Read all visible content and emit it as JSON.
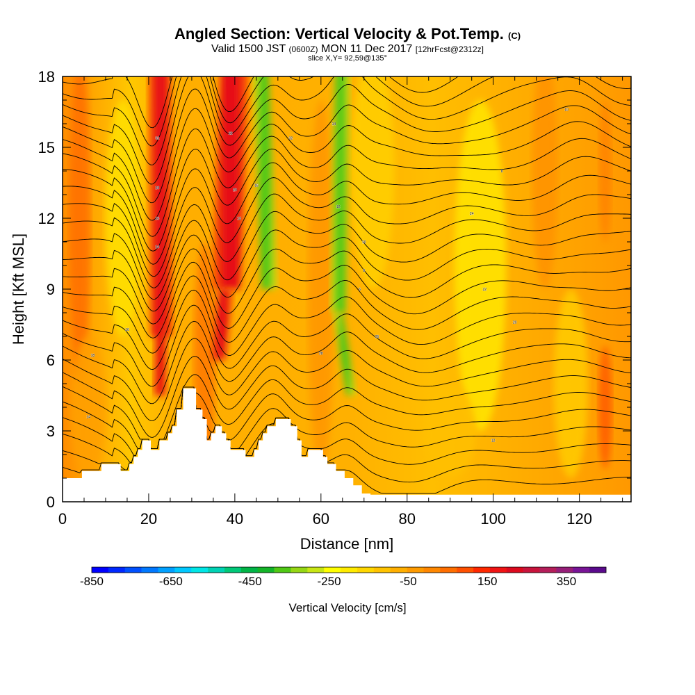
{
  "chart_data": {
    "type": "heatmap",
    "title": "Angled Section: Vertical Velocity & Pot.Temp.",
    "title_mark": "(C)",
    "subtitle_main_a": "Valid 1500 JST",
    "subtitle_utc": "(0600Z)",
    "subtitle_main_b": "MON 11 Dec 2017",
    "subtitle_fcst": "[12hrFcst@2312z]",
    "slice_label": "slice X,Y= 92,59@135°",
    "xlabel": "Distance [nm]",
    "ylabel": "Height [Kft MSL]",
    "xlim": [
      0,
      132
    ],
    "ylim": [
      0,
      18
    ],
    "x_ticks": [
      "0",
      "20",
      "40",
      "60",
      "80",
      "100",
      "120"
    ],
    "y_ticks": [
      "0",
      "3",
      "6",
      "9",
      "12",
      "15",
      "18"
    ],
    "colorbar": {
      "label": "Vertical Velocity [cm/s]",
      "ticks": [
        "-850",
        "-650",
        "-450",
        "-250",
        "-50",
        "150",
        "350"
      ],
      "range": [
        -850,
        450
      ],
      "colors": [
        "#0000ff",
        "#0028ff",
        "#0050ff",
        "#0078ff",
        "#00a0ff",
        "#00c8ff",
        "#00e6e6",
        "#00d2b4",
        "#00c878",
        "#00b446",
        "#14b428",
        "#50c814",
        "#96d714",
        "#c8e614",
        "#ffff00",
        "#ffeb00",
        "#ffd700",
        "#ffc300",
        "#ffaf00",
        "#ff9b00",
        "#ff8700",
        "#ff6e00",
        "#ff5000",
        "#ff2800",
        "#f01414",
        "#dc0a1e",
        "#c8143c",
        "#b41e5a",
        "#961e78",
        "#781496",
        "#5a0a8c"
      ]
    },
    "contour_labels": [
      "32",
      "28",
      "26",
      "24",
      "22",
      "20",
      "18",
      "16",
      "14",
      "12",
      "10",
      "8",
      "6"
    ]
  }
}
